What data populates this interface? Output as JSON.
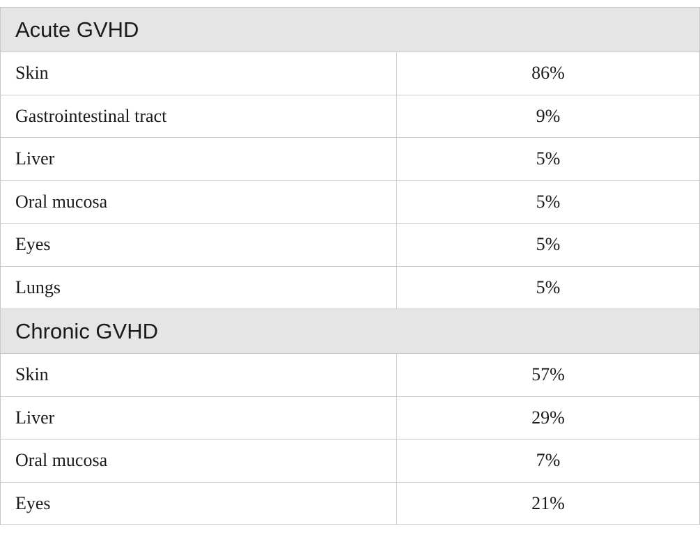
{
  "sections": [
    {
      "title": "Acute GVHD",
      "rows": [
        {
          "organ": "Skin",
          "value": "86%"
        },
        {
          "organ": "Gastrointestinal tract",
          "value": "9%"
        },
        {
          "organ": "Liver",
          "value": "5%"
        },
        {
          "organ": "Oral mucosa",
          "value": "5%"
        },
        {
          "organ": "Eyes",
          "value": "5%"
        },
        {
          "organ": "Lungs",
          "value": "5%"
        }
      ]
    },
    {
      "title": "Chronic GVHD",
      "rows": [
        {
          "organ": "Skin",
          "value": "57%"
        },
        {
          "organ": "Liver",
          "value": "29%"
        },
        {
          "organ": "Oral mucosa",
          "value": "7%"
        },
        {
          "organ": "Eyes",
          "value": "21%"
        }
      ]
    }
  ],
  "colors": {
    "section_background": "#e6e5e6",
    "border": "#c8c8c8",
    "text": "#1a1a1a"
  }
}
